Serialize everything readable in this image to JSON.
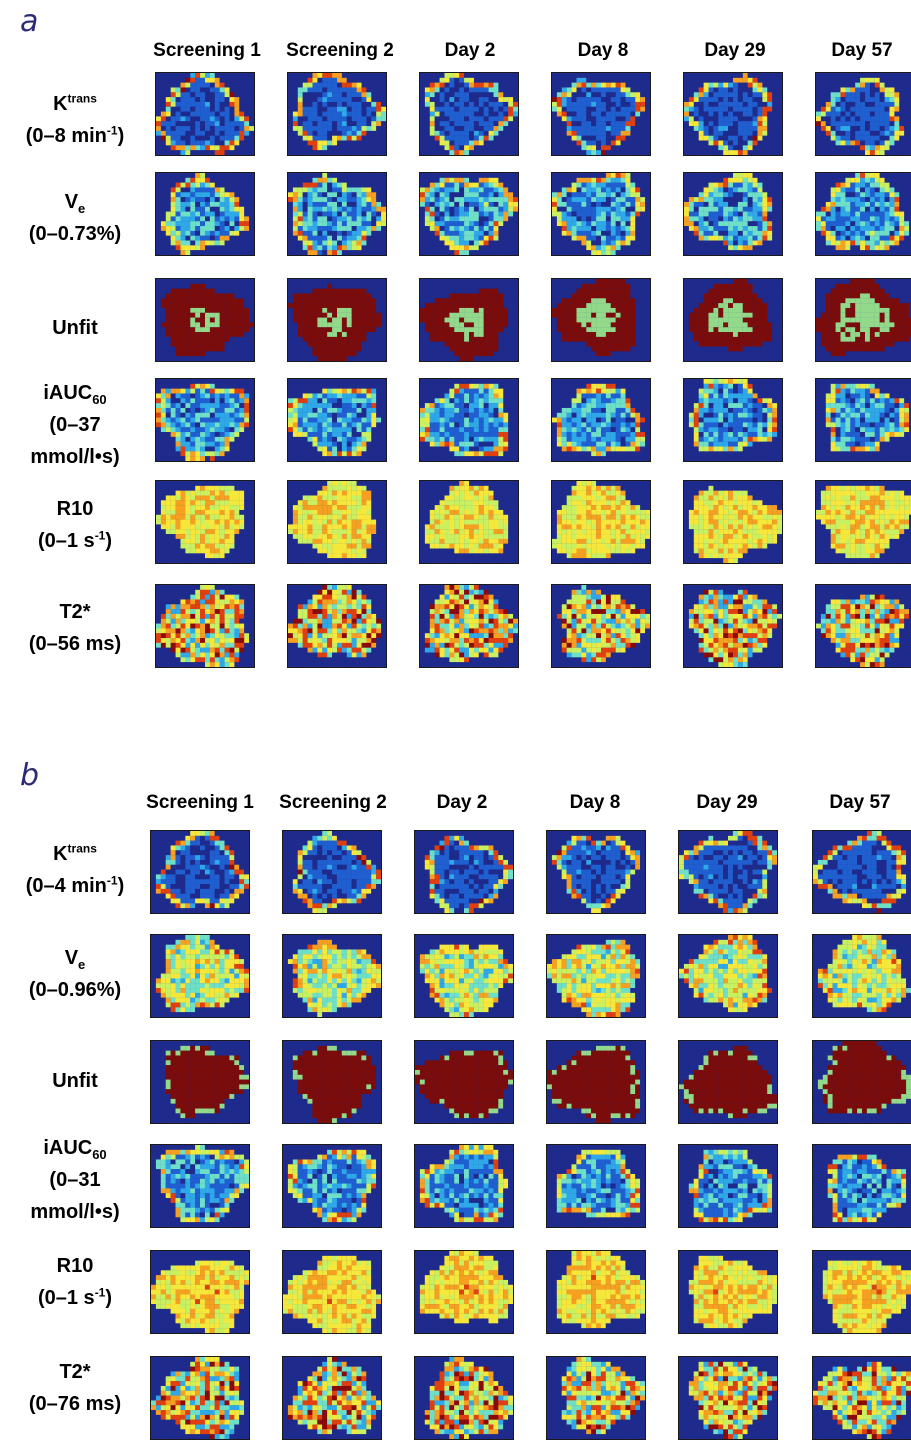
{
  "panels": [
    {
      "label": "a",
      "columns": [
        "Screening 1",
        "Screening 2",
        "Day 2",
        "Day 8",
        "Day 29",
        "Day 57"
      ],
      "rows": [
        {
          "main": "K",
          "sup": "trans",
          "sub": "",
          "lines": [
            "(0–8 min",
            ")"
          ],
          "line_sup": "-1",
          "kind": "kt"
        },
        {
          "main": "V",
          "sup": "",
          "sub": "e",
          "lines": [
            "(0–0.73%)"
          ],
          "line_sup": "",
          "kind": "ve"
        },
        {
          "main": "Unfit",
          "sup": "",
          "sub": "",
          "lines": [],
          "line_sup": "",
          "kind": "unfit"
        },
        {
          "main": "iAUC",
          "sup": "",
          "sub": "60",
          "lines": [
            "(0–37",
            "mmol/l•s)"
          ],
          "line_sup": "",
          "kind": "iauc"
        },
        {
          "main": "R10",
          "sup": "",
          "sub": "",
          "lines": [
            "(0–1 s",
            ")"
          ],
          "line_sup": "-1",
          "kind": "r10"
        },
        {
          "main": "T2*",
          "sup": "",
          "sub": "",
          "lines": [
            "(0–56 ms)"
          ],
          "line_sup": "",
          "kind": "t2"
        }
      ]
    },
    {
      "label": "b",
      "columns": [
        "Screening 1",
        "Screening 2",
        "Day 2",
        "Day 8",
        "Day 29",
        "Day 57"
      ],
      "rows": [
        {
          "main": "K",
          "sup": "trans",
          "sub": "",
          "lines": [
            "(0–4 min",
            ")"
          ],
          "line_sup": "-1",
          "kind": "kt"
        },
        {
          "main": "V",
          "sup": "",
          "sub": "e",
          "lines": [
            "(0–0.96%)"
          ],
          "line_sup": "",
          "kind": "ve"
        },
        {
          "main": "Unfit",
          "sup": "",
          "sub": "",
          "lines": [],
          "line_sup": "",
          "kind": "unfit"
        },
        {
          "main": "iAUC",
          "sup": "",
          "sub": "60",
          "lines": [
            "(0–31",
            "mmol/l•s)"
          ],
          "line_sup": "",
          "kind": "iauc"
        },
        {
          "main": "R10",
          "sup": "",
          "sub": "",
          "lines": [
            "(0–1 s",
            ")"
          ],
          "line_sup": "-1",
          "kind": "r10"
        },
        {
          "main": "T2*",
          "sup": "",
          "sub": "",
          "lines": [
            "(0–76 ms)"
          ],
          "line_sup": "",
          "kind": "t2"
        }
      ]
    }
  ],
  "colormap": [
    "#1e2a8c",
    "#1f5fd0",
    "#2fa8e8",
    "#6fe0c8",
    "#c8f060",
    "#f5e83a",
    "#f5a020",
    "#e04010",
    "#8a0a0a"
  ],
  "unfit_colors": {
    "fit": "#93d98a",
    "unfit": "#7a0c0c",
    "background": "#1e2a8c"
  }
}
